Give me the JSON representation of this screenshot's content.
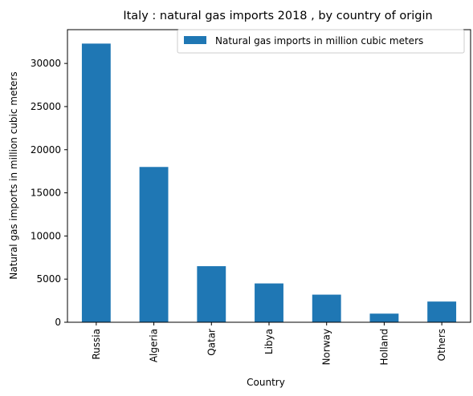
{
  "chart_data": {
    "type": "bar",
    "title": "Italy : natural gas imports 2018 , by country of origin",
    "xlabel": "Country",
    "ylabel": "Natural gas imports in million cubic meters",
    "categories": [
      "Russia",
      "Algeria",
      "Qatar",
      "Libya",
      "Norway",
      "Holland",
      "Others"
    ],
    "series": [
      {
        "name": "Natural gas imports in million cubic meters",
        "values": [
          32300,
          18000,
          6500,
          4500,
          3200,
          1000,
          2400
        ],
        "color": "#1f77b4"
      }
    ],
    "yticks": [
      0,
      5000,
      10000,
      15000,
      20000,
      25000,
      30000
    ],
    "ylim": [
      0,
      33915
    ],
    "grid": false,
    "legend_position": "top-right"
  }
}
